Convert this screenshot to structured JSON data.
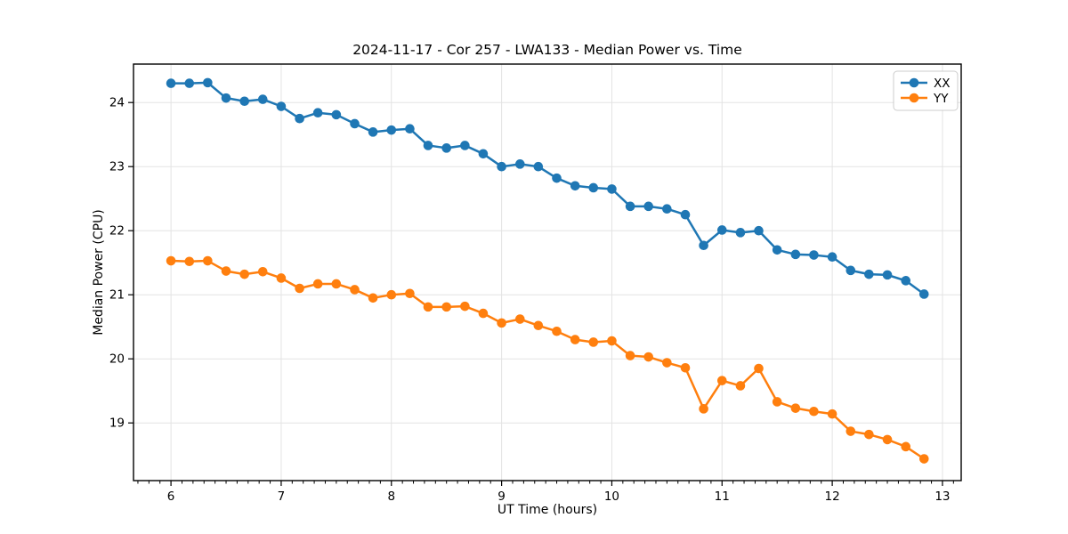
{
  "figure": {
    "background": "#ffffff",
    "grid_color": "#e3e3e3",
    "spine_color": "#000000",
    "legend_border_color": "#cccccc"
  },
  "chart_data": {
    "type": "line",
    "title": "2024-11-17 - Cor 257 - LWA133 - Median Power vs. Time",
    "xlabel": "UT Time (hours)",
    "ylabel": "Median Power (CPU)",
    "xlim": [
      5.66,
      13.17
    ],
    "ylim": [
      18.1,
      24.6
    ],
    "xticks": [
      6,
      7,
      8,
      9,
      10,
      11,
      12,
      13
    ],
    "yticks": [
      19,
      20,
      21,
      22,
      23,
      24
    ],
    "minor_xtick_step": 0.1,
    "grid": true,
    "legend": {
      "position": "upper right",
      "entries": [
        "XX",
        "YY"
      ]
    },
    "x": [
      6.0,
      6.167,
      6.333,
      6.5,
      6.667,
      6.833,
      7.0,
      7.167,
      7.333,
      7.5,
      7.667,
      7.833,
      8.0,
      8.167,
      8.333,
      8.5,
      8.667,
      8.833,
      9.0,
      9.167,
      9.333,
      9.5,
      9.667,
      9.833,
      10.0,
      10.167,
      10.333,
      10.5,
      10.667,
      10.833,
      11.0,
      11.167,
      11.333,
      11.5,
      11.667,
      11.833,
      12.0,
      12.167,
      12.333,
      12.5,
      12.667,
      12.833
    ],
    "series": [
      {
        "name": "XX",
        "color": "#1f77b4",
        "values": [
          24.3,
          24.3,
          24.31,
          24.07,
          24.02,
          24.05,
          23.94,
          23.75,
          23.84,
          23.81,
          23.67,
          23.54,
          23.57,
          23.59,
          23.33,
          23.29,
          23.33,
          23.2,
          23.0,
          23.04,
          23.0,
          22.82,
          22.7,
          22.67,
          22.65,
          22.38,
          22.38,
          22.34,
          22.25,
          21.77,
          22.01,
          21.97,
          22.0,
          21.7,
          21.63,
          21.62,
          21.59,
          21.38,
          21.32,
          21.31,
          21.22,
          21.01
        ]
      },
      {
        "name": "YY",
        "color": "#ff7f0e",
        "values": [
          21.53,
          21.52,
          21.53,
          21.37,
          21.32,
          21.36,
          21.26,
          21.1,
          21.17,
          21.17,
          21.08,
          20.95,
          21.0,
          21.02,
          20.81,
          20.81,
          20.82,
          20.71,
          20.56,
          20.62,
          20.52,
          20.43,
          20.3,
          20.26,
          20.28,
          20.05,
          20.03,
          19.94,
          19.86,
          19.22,
          19.66,
          19.58,
          19.85,
          19.33,
          19.23,
          19.18,
          19.14,
          18.87,
          18.82,
          18.74,
          18.63,
          18.44
        ]
      }
    ]
  }
}
